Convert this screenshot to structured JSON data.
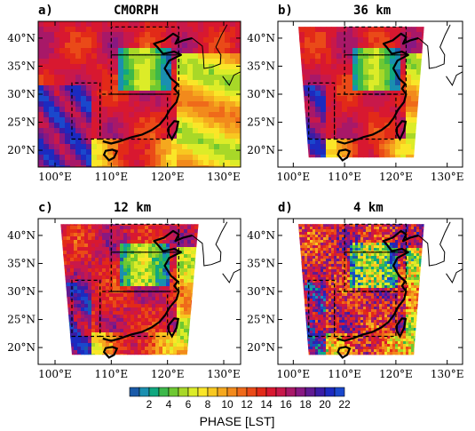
{
  "panels": [
    {
      "id": "a",
      "label": "a)",
      "title": "CMORPH",
      "coverage": "full",
      "texture": "smooth"
    },
    {
      "id": "b",
      "label": "b)",
      "title": "36 km",
      "coverage": "model-domain",
      "texture": "smooth"
    },
    {
      "id": "c",
      "label": "c)",
      "title": "12 km",
      "coverage": "model-domain",
      "texture": "medium"
    },
    {
      "id": "d",
      "label": "d)",
      "title": "4 km",
      "coverage": "model-domain",
      "texture": "speckled"
    }
  ],
  "axes": {
    "lon_ticks": [
      "100°E",
      "110°E",
      "120°E",
      "130°E"
    ],
    "lat_ticks": [
      "40°N",
      "35°N",
      "30°N",
      "25°N",
      "20°N"
    ],
    "lon_range": [
      97,
      133
    ],
    "lat_range": [
      17,
      43
    ]
  },
  "colorbar": {
    "title": "PHASE [LST]",
    "tick_labels": [
      "2",
      "4",
      "6",
      "8",
      "10",
      "12",
      "14",
      "16",
      "18",
      "20",
      "22"
    ],
    "colors": [
      "#1a5aa8",
      "#1a8fb0",
      "#10a880",
      "#3cb84a",
      "#6ec832",
      "#a8d828",
      "#dcec28",
      "#fae628",
      "#f8c820",
      "#f5a81e",
      "#f28a1c",
      "#ef6a1a",
      "#ea4a18",
      "#e22a18",
      "#d81830",
      "#c8184a",
      "#a81868",
      "#881882",
      "#601a92",
      "#3a1ca6",
      "#1c2ac0",
      "#1a48cc"
    ]
  }
}
